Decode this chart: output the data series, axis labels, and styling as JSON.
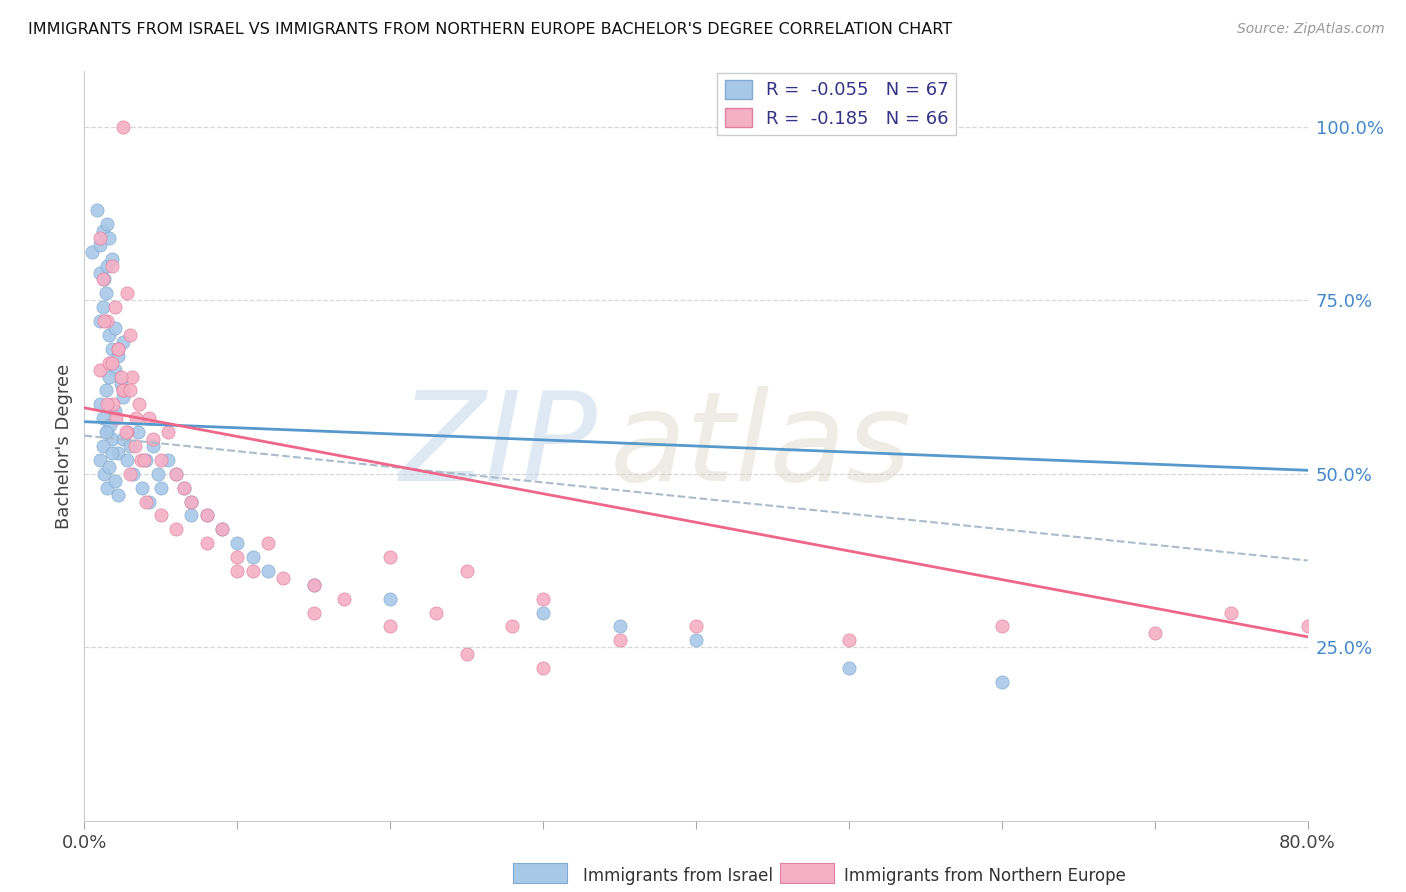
{
  "title": "IMMIGRANTS FROM ISRAEL VS IMMIGRANTS FROM NORTHERN EUROPE BACHELOR'S DEGREE CORRELATION CHART",
  "source": "Source: ZipAtlas.com",
  "ylabel": "Bachelor's Degree",
  "right_yticks": [
    "100.0%",
    "75.0%",
    "50.0%",
    "25.0%"
  ],
  "right_ytick_vals": [
    1.0,
    0.75,
    0.5,
    0.25
  ],
  "legend_label_israel": "Immigrants from Israel",
  "legend_label_northern": "Immigrants from Northern Europe",
  "R_israel": -0.055,
  "N_israel": 67,
  "R_northern": -0.185,
  "N_northern": 66,
  "color_israel": "#a8c8e8",
  "color_northern": "#f4b0c4",
  "color_israel_edge": "#80aad0",
  "color_northern_edge": "#e080a0",
  "color_trend_israel": "#5599cc",
  "color_trend_northern": "#ee6688",
  "color_trend_dashed": "#aabbcc",
  "background_color": "#ffffff",
  "xlim": [
    0.0,
    0.8
  ],
  "ylim": [
    0.0,
    1.08
  ]
}
